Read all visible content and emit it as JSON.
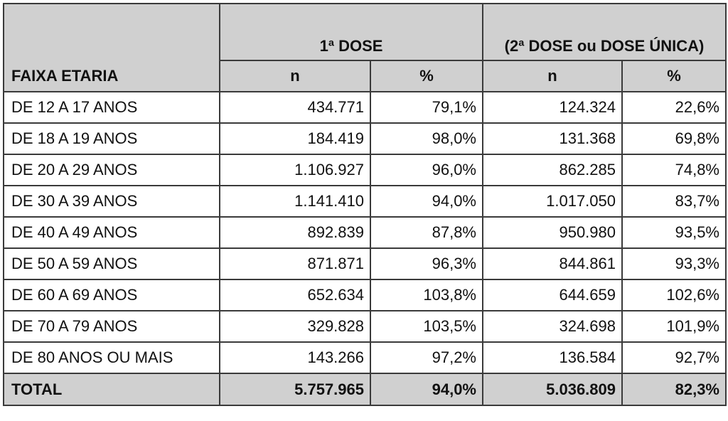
{
  "table": {
    "header": {
      "age_group": "FAIXA ETARIA",
      "dose1": "1ª DOSE",
      "dose2": "(2ª DOSE ou DOSE ÚNICA)",
      "n": "n",
      "pct": "%"
    },
    "rows": [
      {
        "label": "DE 12 A 17 ANOS",
        "d1_n": "434.771",
        "d1_pct": "79,1%",
        "d2_n": "124.324",
        "d2_pct": "22,6%"
      },
      {
        "label": "DE 18 A 19 ANOS",
        "d1_n": "184.419",
        "d1_pct": "98,0%",
        "d2_n": "131.368",
        "d2_pct": "69,8%"
      },
      {
        "label": "DE 20 A 29 ANOS",
        "d1_n": "1.106.927",
        "d1_pct": "96,0%",
        "d2_n": "862.285",
        "d2_pct": "74,8%"
      },
      {
        "label": "DE 30 A 39 ANOS",
        "d1_n": "1.141.410",
        "d1_pct": "94,0%",
        "d2_n": "1.017.050",
        "d2_pct": "83,7%"
      },
      {
        "label": "DE 40 A 49 ANOS",
        "d1_n": "892.839",
        "d1_pct": "87,8%",
        "d2_n": "950.980",
        "d2_pct": "93,5%"
      },
      {
        "label": "DE 50 A 59 ANOS",
        "d1_n": "871.871",
        "d1_pct": "96,3%",
        "d2_n": "844.861",
        "d2_pct": "93,3%"
      },
      {
        "label": "DE 60 A 69 ANOS",
        "d1_n": "652.634",
        "d1_pct": "103,8%",
        "d2_n": "644.659",
        "d2_pct": "102,6%"
      },
      {
        "label": "DE 70 A 79 ANOS",
        "d1_n": "329.828",
        "d1_pct": "103,5%",
        "d2_n": "324.698",
        "d2_pct": "101,9%"
      },
      {
        "label": "DE 80 ANOS OU MAIS",
        "d1_n": "143.266",
        "d1_pct": "97,2%",
        "d2_n": "136.584",
        "d2_pct": "92,7%"
      }
    ],
    "total": {
      "label": "TOTAL",
      "d1_n": "5.757.965",
      "d1_pct": "94,0%",
      "d2_n": "5.036.809",
      "d2_pct": "82,3%"
    }
  }
}
